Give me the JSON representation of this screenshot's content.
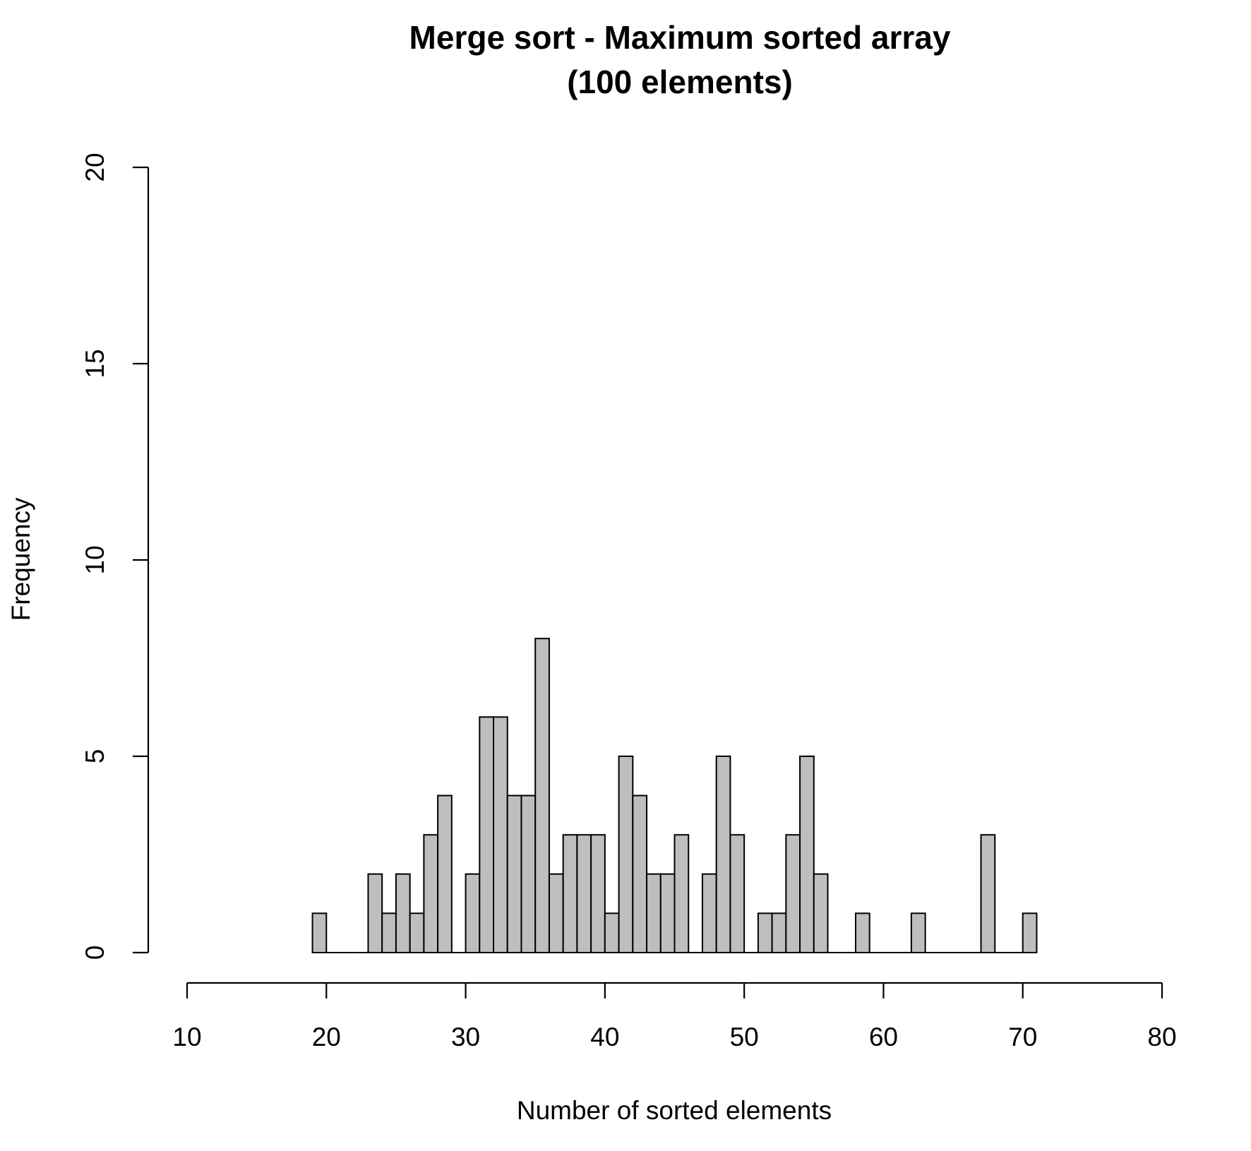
{
  "chart_data": {
    "type": "histogram",
    "title": "Merge sort - Maximum sorted array",
    "subtitle": "(100 elements)",
    "x_label": "Number of sorted elements",
    "y_label": "Frequency",
    "color": "#bebebe",
    "bins": [
      19,
      20,
      21,
      22,
      23,
      24,
      25,
      26,
      27,
      28,
      29,
      30,
      31,
      32,
      33,
      34,
      35,
      36,
      37,
      38,
      39,
      40,
      41,
      42,
      43,
      44,
      45,
      46,
      47,
      48,
      49,
      50,
      51,
      52,
      53,
      54,
      55,
      56,
      57,
      58,
      59,
      60,
      61,
      62,
      63,
      64,
      65,
      66,
      67,
      68,
      69,
      70,
      71
    ],
    "values": [
      1,
      0,
      0,
      0,
      2,
      1,
      2,
      1,
      3,
      4,
      0,
      2,
      6,
      6,
      4,
      4,
      8,
      2,
      3,
      3,
      3,
      1,
      5,
      4,
      2,
      2,
      3,
      0,
      2,
      5,
      3,
      0,
      1,
      1,
      3,
      5,
      2,
      0,
      0,
      1,
      0,
      0,
      0,
      1,
      0,
      0,
      0,
      0,
      3,
      0,
      0,
      1
    ],
    "xlim": [
      10,
      80
    ],
    "xticks": [
      10,
      20,
      30,
      40,
      50,
      60,
      70,
      80
    ],
    "ylim": [
      0,
      20
    ],
    "yticks": [
      0,
      5,
      10,
      15,
      20
    ]
  }
}
